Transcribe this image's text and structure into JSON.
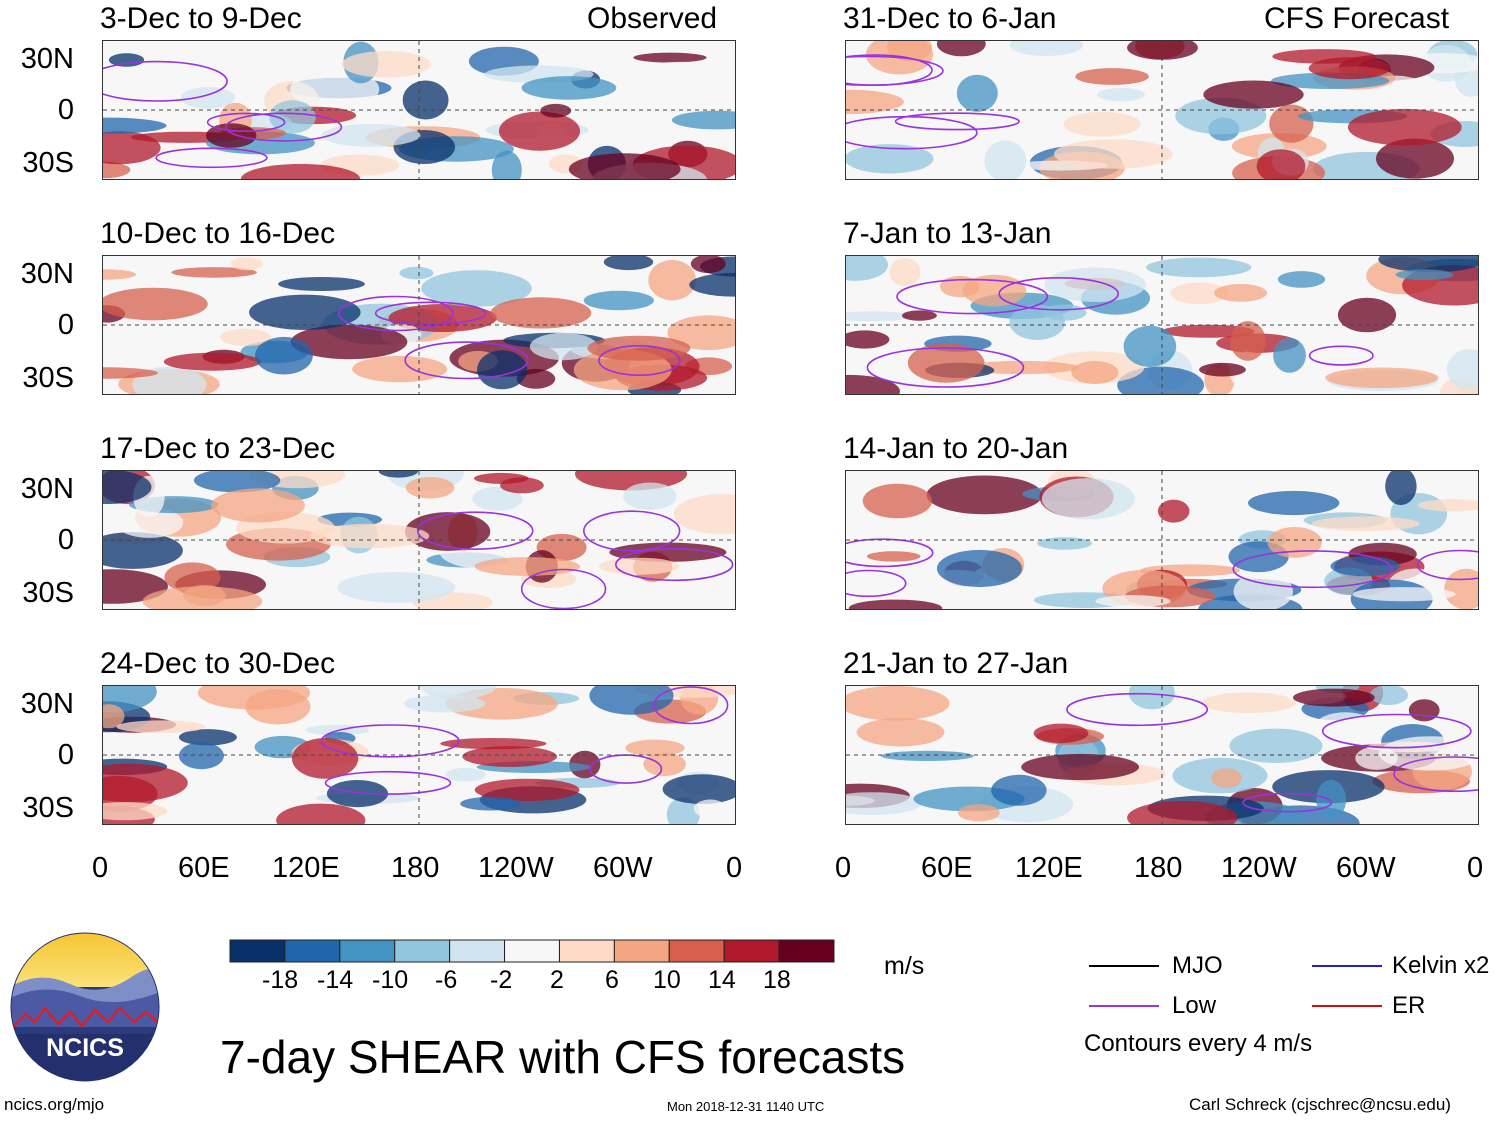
{
  "headers": {
    "observed": "Observed",
    "forecast": "CFS Forecast"
  },
  "panels_left": [
    {
      "title": "3-Dec to 9-Dec"
    },
    {
      "title": "10-Dec to 16-Dec"
    },
    {
      "title": "17-Dec to 23-Dec"
    },
    {
      "title": "24-Dec to 30-Dec"
    }
  ],
  "panels_right": [
    {
      "title": "31-Dec to 6-Jan"
    },
    {
      "title": "7-Jan to 13-Jan"
    },
    {
      "title": "14-Jan to 20-Jan"
    },
    {
      "title": "21-Jan to 27-Jan"
    }
  ],
  "chart_data": {
    "type": "heatmap",
    "title": "7-day SHEAR with CFS forecasts",
    "variable": "SHEAR",
    "units": "m/s",
    "lat_ticks": [
      "30N",
      "0",
      "30S"
    ],
    "lon_ticks": [
      "0",
      "60E",
      "120E",
      "180",
      "120W",
      "60W",
      "0"
    ],
    "colorbar": {
      "ticks": [
        "-18",
        "-14",
        "-10",
        "-6",
        "-2",
        "2",
        "6",
        "10",
        "14",
        "18"
      ],
      "colors": [
        "#08306b",
        "#2166ac",
        "#4393c3",
        "#92c5de",
        "#d1e5f0",
        "#f7f7f7",
        "#fddbc7",
        "#f4a582",
        "#d6604d",
        "#b2182b",
        "#67001f"
      ]
    },
    "legend": [
      {
        "label": "MJO",
        "color": "#000000"
      },
      {
        "label": "Kelvin x2",
        "color": "#2222cc"
      },
      {
        "label": "Low",
        "color": "#9933dd"
      },
      {
        "label": "ER",
        "color": "#cc1111"
      }
    ],
    "contour_note": "Contours every 4 m/s"
  },
  "footer": {
    "logo_text": "NCICS",
    "url": "ncics.org/mjo",
    "timestamp": "Mon 2018-12-31 1140 UTC",
    "credit": "Carl Schreck (cjschrec@ncsu.edu)"
  }
}
